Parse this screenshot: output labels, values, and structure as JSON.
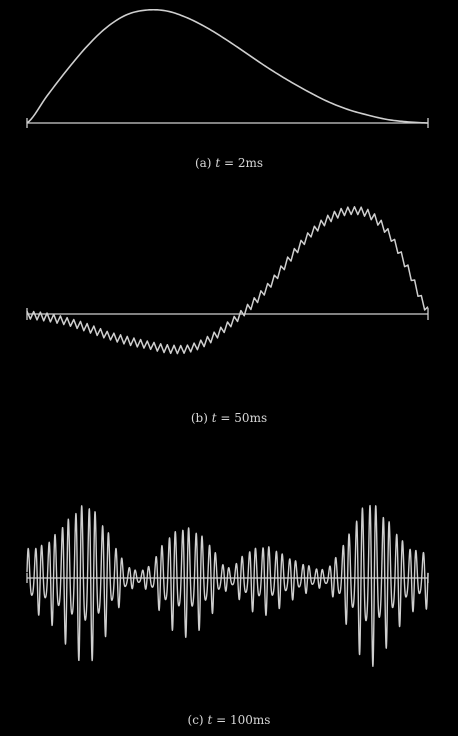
{
  "colors": {
    "background": "#000000",
    "curve": "#cfcfcf",
    "axis": "#cfcfcf",
    "caption": "#d8d8d8"
  },
  "panels": [
    {
      "caption_prefix": "(a)",
      "t_var": "t",
      "equals": "=",
      "t_value": "2",
      "t_unit": "ms"
    },
    {
      "caption_prefix": "(b)",
      "t_var": "t",
      "equals": "=",
      "t_value": "50",
      "t_unit": "ms"
    },
    {
      "caption_prefix": "(c)",
      "t_var": "t",
      "equals": "=",
      "t_value": "100",
      "t_unit": "ms"
    }
  ],
  "chart_data": [
    {
      "type": "line",
      "title": "(a) t = 2 ms",
      "grid": false,
      "xlim": [
        0,
        1
      ],
      "ylim": [
        -0.1,
        1
      ],
      "x": [
        0,
        0.05,
        0.1,
        0.15,
        0.2,
        0.25,
        0.3,
        0.35,
        0.4,
        0.45,
        0.5,
        0.55,
        0.6,
        0.65,
        0.7,
        0.75,
        0.8,
        0.85,
        0.9,
        0.95,
        1
      ],
      "y": [
        0,
        0.24,
        0.47,
        0.68,
        0.85,
        0.96,
        1.0,
        0.99,
        0.93,
        0.84,
        0.73,
        0.61,
        0.49,
        0.38,
        0.28,
        0.19,
        0.12,
        0.07,
        0.03,
        0.01,
        0
      ]
    },
    {
      "type": "line",
      "title": "(b) t = 50 ms",
      "grid": false,
      "xlim": [
        0,
        1
      ],
      "ylim": [
        -0.4,
        1
      ],
      "x": [
        0,
        0.05,
        0.1,
        0.15,
        0.2,
        0.25,
        0.3,
        0.35,
        0.4,
        0.45,
        0.5,
        0.55,
        0.6,
        0.65,
        0.7,
        0.75,
        0.8,
        0.85,
        0.9,
        0.95,
        1
      ],
      "y": [
        0,
        -0.03,
        -0.08,
        -0.13,
        -0.19,
        -0.25,
        -0.3,
        -0.33,
        -0.32,
        -0.25,
        -0.12,
        0.05,
        0.26,
        0.5,
        0.72,
        0.89,
        0.98,
        0.95,
        0.76,
        0.42,
        0.04
      ]
    },
    {
      "type": "line",
      "title": "(c) t = 100 ms",
      "grid": false,
      "xlim": [
        0,
        1
      ],
      "ylim": [
        -1,
        1
      ],
      "x": [
        0,
        0.05,
        0.1,
        0.15,
        0.2,
        0.25,
        0.3,
        0.35,
        0.4,
        0.45,
        0.5,
        0.55,
        0.6,
        0.65,
        0.7,
        0.75,
        0.8,
        0.85,
        0.9,
        0.95,
        1
      ],
      "envelope": [
        0.28,
        0.34,
        0.55,
        0.7,
        0.45,
        0.12,
        0.1,
        0.38,
        0.48,
        0.35,
        0.1,
        0.25,
        0.3,
        0.2,
        0.12,
        0.1,
        0.4,
        0.72,
        0.55,
        0.3,
        0.25
      ],
      "cycles": 60
    }
  ]
}
